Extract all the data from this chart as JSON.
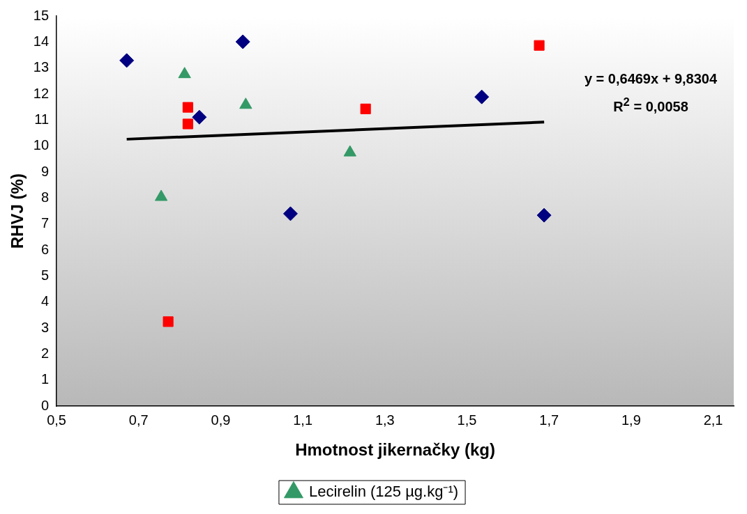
{
  "chart_data": {
    "type": "scatter",
    "xlabel": "Hmotnost jikernačky (kg)",
    "ylabel": "RHVJ (%)",
    "xlim": [
      0.5,
      2.15
    ],
    "ylim": [
      0,
      15
    ],
    "xticks": [
      {
        "value": 0.5,
        "label": "0,5"
      },
      {
        "value": 0.7,
        "label": "0,7"
      },
      {
        "value": 0.9,
        "label": "0,9"
      },
      {
        "value": 1.1,
        "label": "1,1"
      },
      {
        "value": 1.3,
        "label": "1,3"
      },
      {
        "value": 1.5,
        "label": "1,5"
      },
      {
        "value": 1.7,
        "label": "1,7"
      },
      {
        "value": 1.9,
        "label": "1,9"
      },
      {
        "value": 2.1,
        "label": "2,1"
      }
    ],
    "yticks": [
      0,
      1,
      2,
      3,
      4,
      5,
      6,
      7,
      8,
      9,
      10,
      11,
      12,
      13,
      14,
      15
    ],
    "grid": false,
    "legend": "bottom",
    "series": [
      {
        "color": "#000080",
        "marker": "diamond",
        "x": [
          0.671,
          0.954,
          0.848,
          1.07,
          1.536,
          1.688
        ],
        "values": [
          13.29,
          14.01,
          11.11,
          7.4,
          11.89,
          7.34
        ]
      },
      {
        "color": "#ff0000",
        "marker": "square",
        "x": [
          0.772,
          0.82,
          0.82,
          1.253,
          1.676
        ],
        "values": [
          3.25,
          11.49,
          10.85,
          11.43,
          13.87
        ]
      },
      {
        "name": "Lecirelin (125 µg.kg⁻¹)",
        "color": "#339966",
        "marker": "triangle",
        "x": [
          0.812,
          0.755,
          0.961,
          1.215
        ],
        "values": [
          12.76,
          8.04,
          11.58,
          9.75
        ]
      },
      {
        "type": "line",
        "color": "#000000",
        "marker": "none",
        "x": [
          0.671,
          1.688
        ],
        "values": [
          10.264,
          10.922
        ]
      }
    ],
    "annotations": [
      "y = 0,6469x + 9,8304",
      "R$^{2}$ = 0,0058"
    ]
  }
}
